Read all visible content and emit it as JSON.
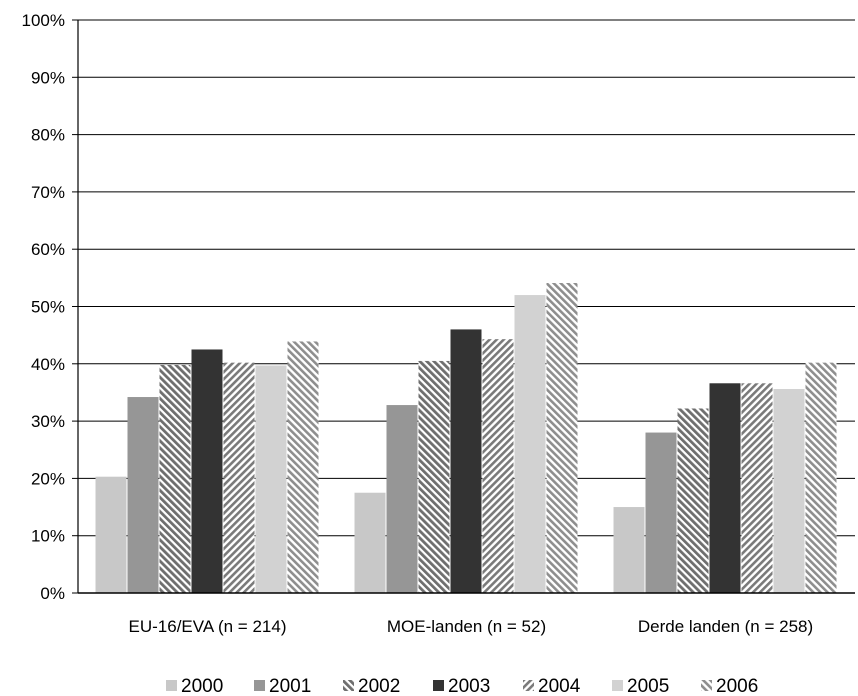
{
  "chart_data": {
    "type": "bar",
    "title": "",
    "xlabel": "",
    "ylabel": "",
    "ylim": [
      0,
      100
    ],
    "yticks": [
      0,
      10,
      20,
      30,
      40,
      50,
      60,
      70,
      80,
      90,
      100
    ],
    "ytick_labels": [
      "0%",
      "10%",
      "20%",
      "30%",
      "40%",
      "50%",
      "60%",
      "70%",
      "80%",
      "90%",
      "100%"
    ],
    "grid": true,
    "legend_position": "bottom",
    "categories": [
      "EU-16/EVA (n = 214)",
      "MOE-landen (n = 52)",
      "Derde landen (n = 258)"
    ],
    "series": [
      {
        "name": "2000",
        "values": [
          20.3,
          17.5,
          15.0
        ],
        "color": "#c8c8c8",
        "pattern": "solid"
      },
      {
        "name": "2001",
        "values": [
          34.2,
          32.8,
          28.0
        ],
        "color": "#969696",
        "pattern": "solid"
      },
      {
        "name": "2002",
        "values": [
          39.8,
          40.5,
          32.2
        ],
        "color": "#7a7a7a",
        "pattern": "diagonal-up"
      },
      {
        "name": "2003",
        "values": [
          42.5,
          46.0,
          36.6
        ],
        "color": "#333333",
        "pattern": "solid"
      },
      {
        "name": "2004",
        "values": [
          40.2,
          44.3,
          36.6
        ],
        "color": "#8c8c8c",
        "pattern": "diagonal-down"
      },
      {
        "name": "2005",
        "values": [
          39.7,
          52.0,
          35.6
        ],
        "color": "#d2d2d2",
        "pattern": "solid"
      },
      {
        "name": "2006",
        "values": [
          43.9,
          54.1,
          40.2
        ],
        "color": "#a8a8a8",
        "pattern": "diagonal-up"
      }
    ]
  }
}
